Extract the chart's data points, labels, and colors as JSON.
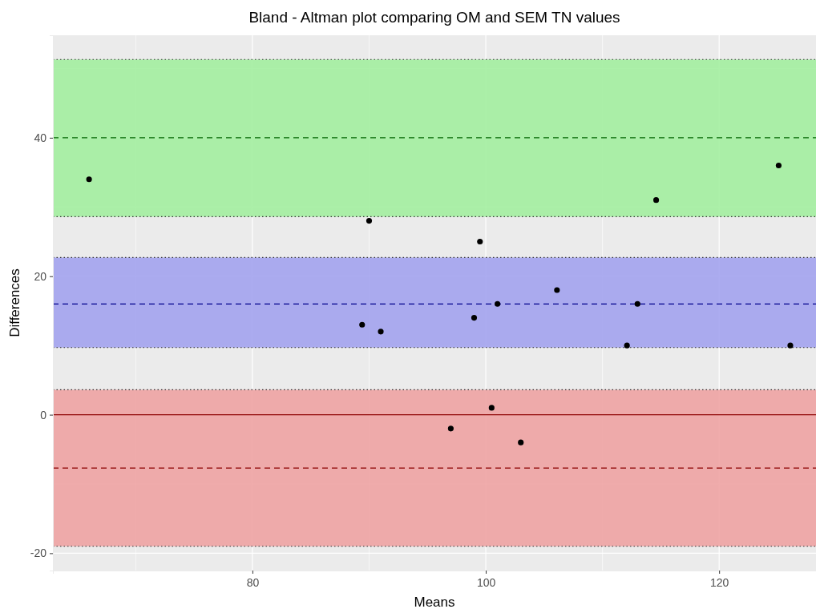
{
  "chart_data": {
    "type": "scatter",
    "title": "Bland - Altman plot comparing OM and SEM TN values",
    "xlabel": "Means",
    "ylabel": "Differences",
    "x": [
      66.0,
      90.0,
      99.5,
      114.6,
      125.1,
      106.1,
      101.0,
      113.0,
      99.0,
      89.4,
      91.0,
      112.1,
      126.1,
      100.5,
      97.0,
      103.0
    ],
    "values": [
      34,
      28,
      25,
      31,
      36,
      18,
      16,
      16,
      14,
      13,
      12,
      10,
      10,
      1,
      -2,
      -4
    ],
    "color": "#000000",
    "marker": "circle",
    "xlim": [
      62.9,
      128.3
    ],
    "xticks": [
      80,
      100,
      120
    ],
    "ylim": [
      -22.5,
      54.8
    ],
    "yticks": [
      -20,
      0,
      20,
      40
    ],
    "grid": true,
    "bands": [
      {
        "axis": "y",
        "from": 28.6,
        "to": 51.3,
        "color": "#a3eea0"
      },
      {
        "axis": "y",
        "from": 9.7,
        "to": 22.7,
        "color": "#a3a3ee"
      },
      {
        "axis": "y",
        "from": -19.0,
        "to": 3.6,
        "color": "#eea3a3"
      }
    ],
    "ref_lines": [
      {
        "axis": "y",
        "value": 40,
        "color": "#006400",
        "line_style": "dashed"
      },
      {
        "axis": "y",
        "value": 16,
        "color": "#00008b",
        "line_style": "dashed"
      },
      {
        "axis": "y",
        "value": 0,
        "color": "#8b0000",
        "line_style": "solid"
      },
      {
        "axis": "y",
        "value": -7.7,
        "color": "#8b0000",
        "line_style": "dashed"
      }
    ]
  }
}
